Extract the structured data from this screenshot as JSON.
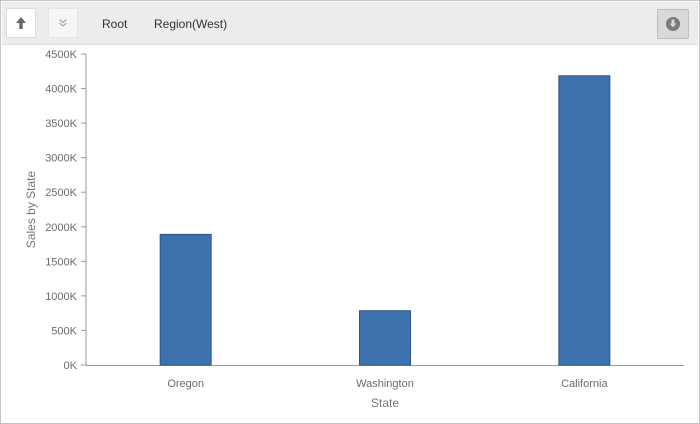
{
  "toolbar": {
    "up_icon": "arrow-up-icon",
    "expand_icon": "double-chevron-down-icon",
    "download_icon": "download-circle-icon",
    "breadcrumbs": [
      "Root",
      "Region(West)"
    ]
  },
  "colors": {
    "bar": "#3d72ae",
    "bar_border": "#2a558a",
    "axis": "#9a9a9a",
    "toolbar_bg": "#ececec"
  },
  "chart_data": {
    "type": "bar",
    "categories": [
      "Oregon",
      "Washington",
      "California"
    ],
    "values": [
      1890,
      785,
      4185
    ],
    "xlabel": "State",
    "ylabel": "Sales by State",
    "ylim": [
      0,
      4500
    ],
    "yticks": [
      0,
      500,
      1000,
      1500,
      2000,
      2500,
      3000,
      3500,
      4000,
      4500
    ],
    "ytick_labels": [
      "0K",
      "500K",
      "1000K",
      "1500K",
      "2000K",
      "2500K",
      "3000K",
      "3500K",
      "4000K",
      "4500K"
    ],
    "grid": false,
    "legend": "none"
  }
}
